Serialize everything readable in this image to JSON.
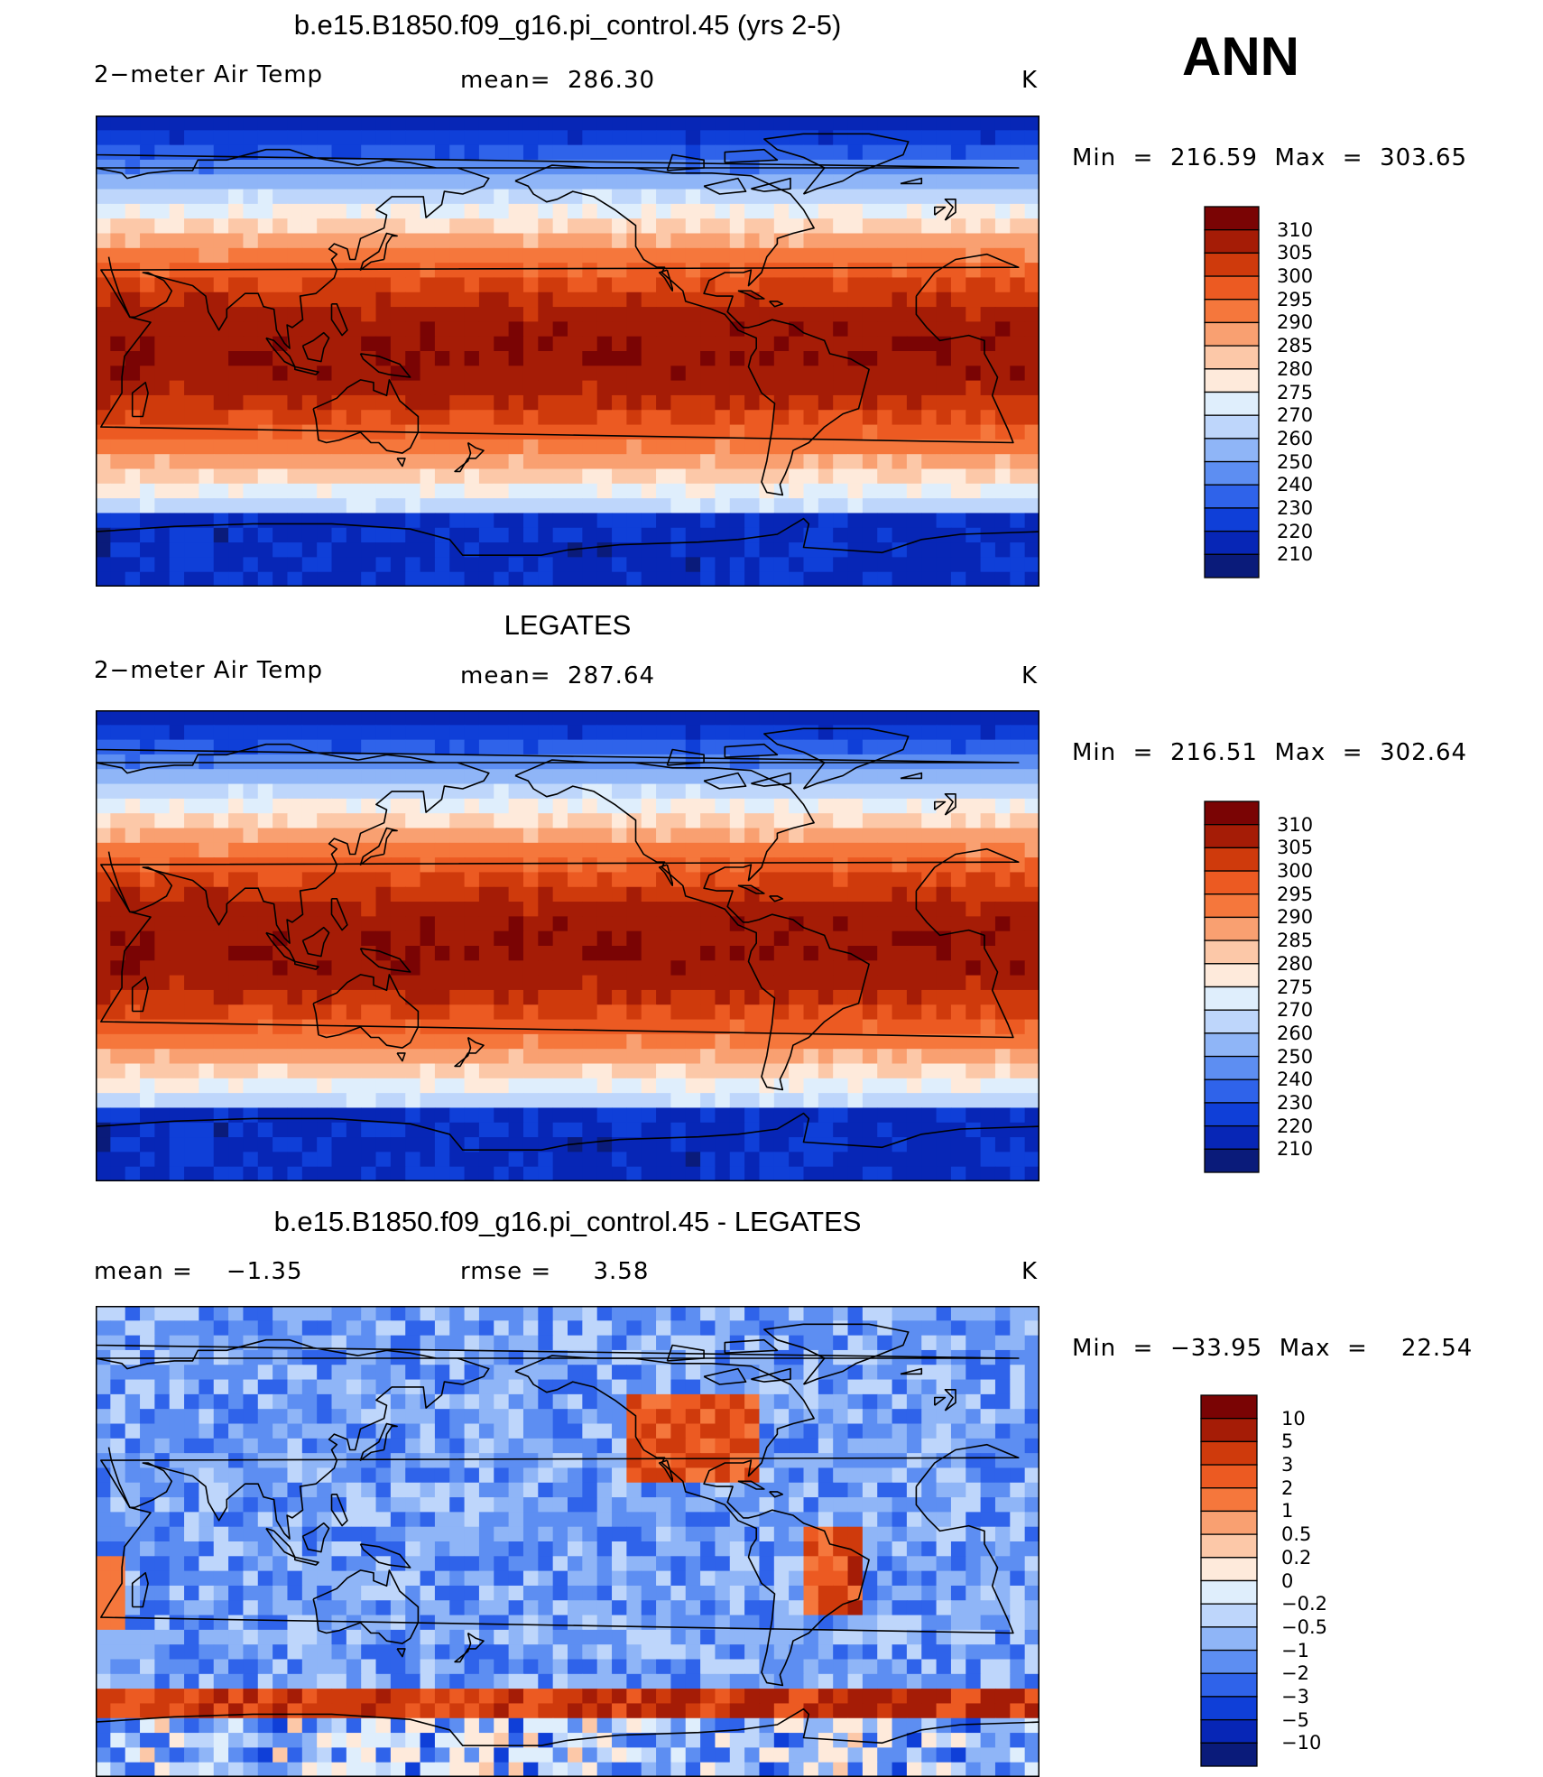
{
  "season": "ANN",
  "chart_data": [
    {
      "type": "heatmap",
      "title": "b.e15.B1850.f09_g16.pi_control.45 (yrs 2-5)",
      "variable": "2−meter Air Temp",
      "stat_text": "mean=  286.30",
      "mean": 286.3,
      "units": "K",
      "minmax_text": "Min  =  216.59  Max  =  303.65",
      "min": 216.59,
      "max": 303.65,
      "colorbar_labels": [
        "310",
        "305",
        "300",
        "295",
        "290",
        "285",
        "280",
        "275",
        "270",
        "260",
        "250",
        "240",
        "230",
        "220",
        "210"
      ],
      "colorbar_colors": [
        "#7a0404",
        "#a51c06",
        "#cf3a0c",
        "#ec5a22",
        "#f5773c",
        "#f9a071",
        "#fcc8a8",
        "#feeadb",
        "#dfeefc",
        "#bed6fb",
        "#8fb5f7",
        "#5d8ef2",
        "#2f63ea",
        "#0f3fd8",
        "#0726b6",
        "#0a1b7a"
      ]
    },
    {
      "type": "heatmap",
      "title": "LEGATES",
      "variable": "2−meter Air Temp",
      "stat_text": "mean=  287.64",
      "mean": 287.64,
      "units": "K",
      "minmax_text": "Min  =  216.51  Max  =  302.64",
      "min": 216.51,
      "max": 302.64,
      "colorbar_labels": [
        "310",
        "305",
        "300",
        "295",
        "290",
        "285",
        "280",
        "275",
        "270",
        "260",
        "250",
        "240",
        "230",
        "220",
        "210"
      ],
      "colorbar_colors": [
        "#7a0404",
        "#a51c06",
        "#cf3a0c",
        "#ec5a22",
        "#f5773c",
        "#f9a071",
        "#fcc8a8",
        "#feeadb",
        "#dfeefc",
        "#bed6fb",
        "#8fb5f7",
        "#5d8ef2",
        "#2f63ea",
        "#0f3fd8",
        "#0726b6",
        "#0a1b7a"
      ]
    },
    {
      "type": "heatmap",
      "title": "b.e15.B1850.f09_g16.pi_control.45 - LEGATES",
      "stat_text": "mean =    −1.35",
      "mean": -1.35,
      "stat2_text": "rmse =     3.58",
      "rmse": 3.58,
      "units": "K",
      "minmax_text": "Min  =  −33.95  Max  =    22.54",
      "min": -33.95,
      "max": 22.54,
      "colorbar_labels": [
        "10",
        "5",
        "3",
        "2",
        "1",
        "0.5",
        "0.2",
        "0",
        "−0.2",
        "−0.5",
        "−1",
        "−2",
        "−3",
        "−5",
        "−10"
      ],
      "colorbar_colors": [
        "#7a0404",
        "#a51c06",
        "#cf3a0c",
        "#ec5a22",
        "#f5773c",
        "#f9a071",
        "#fcc8a8",
        "#feeadb",
        "#dfeefc",
        "#bed6fb",
        "#8fb5f7",
        "#5d8ef2",
        "#2f63ea",
        "#0f3fd8",
        "#0726b6",
        "#0a1b7a"
      ]
    }
  ]
}
